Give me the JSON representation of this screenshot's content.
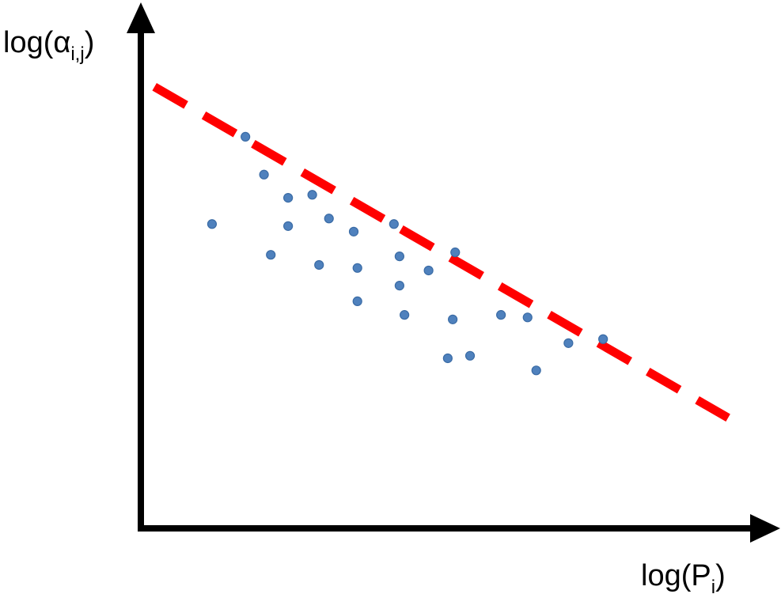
{
  "chart_data": {
    "type": "scatter",
    "y_label": [
      "log(α",
      "i,j",
      ")"
    ],
    "x_label": [
      "log(P",
      "i",
      ")"
    ],
    "xlim": [
      0,
      100
    ],
    "ylim": [
      0,
      100
    ],
    "color": "#4f81bd",
    "x": [
      11.5,
      16.9,
      19.9,
      21.0,
      23.8,
      23.8,
      27.7,
      28.8,
      30.4,
      34.4,
      35.0,
      35.0,
      40.9,
      41.8,
      41.8,
      42.6,
      46.5,
      49.6,
      50.4,
      50.8,
      53.2,
      58.2,
      62.5,
      63.9,
      69.1,
      74.7
    ],
    "y": [
      60.3,
      77.6,
      70.1,
      54.2,
      65.5,
      59.9,
      66.1,
      52.2,
      61.4,
      58.8,
      51.6,
      45.0,
      60.3,
      53.9,
      48.1,
      42.3,
      51.1,
      33.7,
      41.4,
      54.7,
      34.2,
      42.3,
      41.8,
      31.3,
      36.7,
      37.5
    ],
    "trend_line": {
      "x": [
        2.2,
        94.9
      ],
      "y": [
        87.5,
        21.9
      ],
      "color": "#ff0000",
      "dashed": true
    }
  }
}
